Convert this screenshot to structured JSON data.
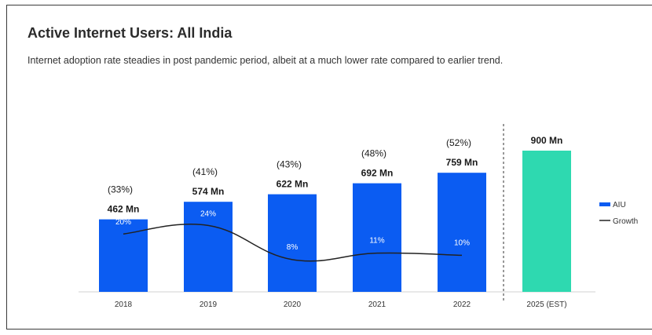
{
  "title": "Active Internet Users: All India",
  "subtitle": "Internet adoption rate steadies in post pandemic period, albeit at a much lower rate compared to earlier trend.",
  "colors": {
    "bar": "#0b5cf2",
    "estimate_bar": "#2ed9b0",
    "growth_line": "#222222",
    "divider": "#555555"
  },
  "chart_data": {
    "type": "bar",
    "title": "Active Internet Users: All India",
    "subtitle": "Internet adoption rate steadies in post pandemic period, albeit at a much lower rate compared to earlier trend.",
    "categories": [
      "2018",
      "2019",
      "2020",
      "2021",
      "2022",
      "2025 (EST)"
    ],
    "series": [
      {
        "name": "AIU",
        "type": "bar",
        "values": [
          462,
          574,
          622,
          692,
          759,
          900
        ],
        "labels": [
          "462 Mn",
          "574 Mn",
          "622 Mn",
          "692 Mn",
          "759 Mn",
          "900 Mn"
        ]
      },
      {
        "name": "Growth",
        "type": "line",
        "values": [
          20,
          24,
          8,
          11,
          10,
          null
        ],
        "labels": [
          "20%",
          "24%",
          "8%",
          "11%",
          "10%",
          ""
        ]
      }
    ],
    "penetration_labels": [
      "(33%)",
      "(41%)",
      "(43%)",
      "(48%)",
      "(52%)",
      ""
    ],
    "estimate_category": "2025 (EST)",
    "legend": {
      "position": "right",
      "entries": [
        "AIU",
        "Growth"
      ]
    },
    "ylim": [
      0,
      1000
    ],
    "growth_ylim": [
      -2,
      90
    ],
    "grid": false
  }
}
